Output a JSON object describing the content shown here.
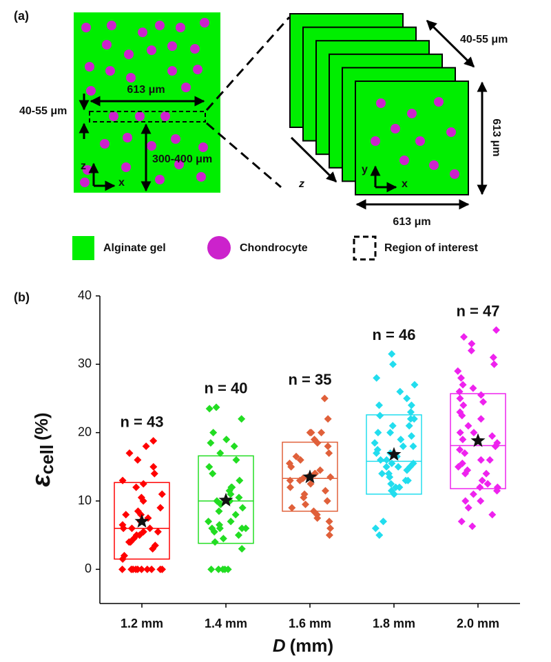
{
  "panel_a": {
    "label": "(a)",
    "gel": {
      "width_label": "613 μm",
      "thickness_label": "40-55 μm",
      "depth_label": "300-400 μm",
      "axis_vertical": "z",
      "axis_horizontal": "x"
    },
    "stack": {
      "thickness_label": "40-55 μm",
      "height_label": "613 μm",
      "width_label": "613 μm",
      "axis_vertical": "y",
      "axis_horizontal": "x",
      "stack_axis": "z"
    },
    "legend": [
      "Alginate gel",
      "Chondrocyte",
      "Region of interest"
    ]
  },
  "panel_b_label": "(b)",
  "chart_data": {
    "type": "box",
    "categories": [
      "1.2 mm",
      "1.4 mm",
      "1.6 mm",
      "1.8 mm",
      "2.0 mm"
    ],
    "ylabel": {
      "symbol": "ε",
      "subscript": "cell",
      "unit": "(%)"
    },
    "xlabel": {
      "symbol": "D",
      "unit": "(mm)"
    },
    "ylim": [
      -5,
      40
    ],
    "yticks": [
      0,
      10,
      20,
      30,
      40
    ],
    "groups": [
      {
        "color": "#ff0000",
        "n_label": "n = 43",
        "q1": 1.5,
        "median": 6,
        "q3": 12.7,
        "mean": 7,
        "values": [
          0,
          0,
          0,
          0,
          0,
          0,
          0,
          0,
          0,
          0,
          1.5,
          2,
          3,
          3.5,
          4,
          4,
          4.5,
          5,
          5,
          5.5,
          5.5,
          6,
          6,
          6,
          6.5,
          7,
          7.5,
          8,
          8,
          8.5,
          9,
          10,
          10.5,
          11,
          12,
          12.5,
          13,
          14,
          15,
          16,
          17,
          18,
          18.8
        ]
      },
      {
        "color": "#22dd22",
        "n_label": "n = 40",
        "q1": 3.8,
        "median": 10,
        "q3": 16.6,
        "mean": 10.1,
        "values": [
          0,
          0,
          0,
          0,
          0,
          3,
          4,
          4.5,
          5,
          5.5,
          6,
          6,
          6,
          6,
          6.5,
          7,
          7,
          8,
          8.5,
          9,
          9.5,
          10,
          10,
          10.5,
          11,
          11.5,
          12,
          12,
          13,
          14,
          15,
          16,
          17,
          18,
          18.5,
          19,
          20,
          22,
          23.5,
          23.7
        ]
      },
      {
        "color": "#e0603a",
        "n_label": "n = 35",
        "q1": 8.5,
        "median": 13.3,
        "q3": 18.6,
        "mean": 13.5,
        "values": [
          5,
          6,
          7,
          7.5,
          8,
          8.5,
          9,
          9.5,
          10,
          10.5,
          11,
          11.5,
          12,
          12.5,
          13,
          13,
          13.3,
          13.5,
          13.5,
          14,
          14,
          14.5,
          15,
          15.5,
          16,
          16.5,
          17,
          18,
          18.5,
          19,
          20,
          20,
          20,
          22,
          25
        ]
      },
      {
        "color": "#22ddee",
        "n_label": "n = 46",
        "q1": 11,
        "median": 15.8,
        "q3": 22.6,
        "mean": 16.8,
        "values": [
          5,
          6,
          7,
          11,
          11.5,
          12,
          12,
          12.5,
          13,
          13,
          13.5,
          14,
          14,
          14.5,
          15,
          15,
          15,
          15.5,
          15.5,
          16,
          16,
          16.5,
          17,
          17,
          17.5,
          18,
          18,
          18.5,
          19,
          19.5,
          20,
          20,
          21,
          21,
          22,
          22,
          22.5,
          23,
          24,
          24,
          25,
          26,
          27,
          28,
          30,
          31.5
        ]
      },
      {
        "color": "#ee22ee",
        "n_label": "n = 47",
        "q1": 11.8,
        "median": 18.1,
        "q3": 25.7,
        "mean": 18.8,
        "values": [
          6.3,
          7,
          8,
          9,
          10,
          10,
          11,
          11.5,
          12,
          12,
          12.5,
          13,
          14,
          14,
          14.5,
          15,
          15.5,
          16,
          16,
          17,
          17.5,
          18,
          18,
          18.5,
          19,
          19.5,
          20,
          20,
          21,
          22,
          22.5,
          23,
          24,
          24.5,
          25,
          25.5,
          26,
          26.5,
          27,
          28,
          29,
          30,
          31,
          32,
          33,
          34,
          35
        ]
      }
    ]
  }
}
